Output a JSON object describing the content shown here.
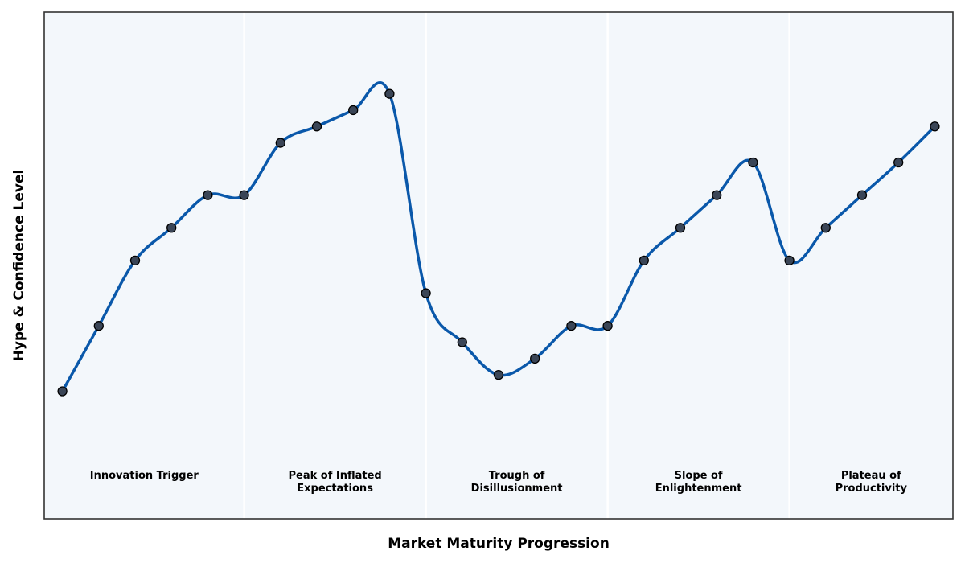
{
  "chart_data": {
    "type": "line",
    "title": "",
    "xlabel": "Market Maturity Progression",
    "ylabel": "Hype & Confidence Level",
    "x": [
      1,
      2,
      3,
      4,
      5,
      6,
      7,
      8,
      9,
      10,
      11,
      12,
      13,
      14,
      15,
      16,
      17,
      18,
      19,
      20,
      21,
      22,
      23,
      24,
      25
    ],
    "series": [
      {
        "values": [
          0.9,
          2.9,
          4.9,
          5.9,
          6.9,
          6.9,
          8.5,
          9.0,
          9.5,
          10.0,
          3.9,
          2.4,
          1.4,
          1.9,
          2.9,
          2.9,
          4.9,
          5.9,
          6.9,
          7.9,
          4.9,
          5.9,
          6.9,
          7.9,
          9.0
        ]
      }
    ],
    "xlim": [
      0.5,
      25.5
    ],
    "ylim": [
      -3.0,
      12.5
    ],
    "phases": [
      {
        "label": "Innovation Trigger",
        "start": 0.5,
        "end": 6.0
      },
      {
        "label": "Peak of Inflated\nExpectations",
        "start": 6.0,
        "end": 11.0
      },
      {
        "label": "Trough of\nDisillusionment",
        "start": 11.0,
        "end": 16.0
      },
      {
        "label": "Slope of\nEnlightenment",
        "start": 16.0,
        "end": 21.0
      },
      {
        "label": "Plateau of\nProductivity",
        "start": 21.0,
        "end": 25.5
      }
    ],
    "colors": {
      "line": "#0a58aa",
      "marker_fill": "#3a4556",
      "marker_edge": "#000000",
      "plot_background": "#f3f7fb",
      "phase_divider": "#ffffff",
      "frame": "#333333"
    },
    "grid": false,
    "legend": "none",
    "smooth": true,
    "show_ticks": false
  }
}
